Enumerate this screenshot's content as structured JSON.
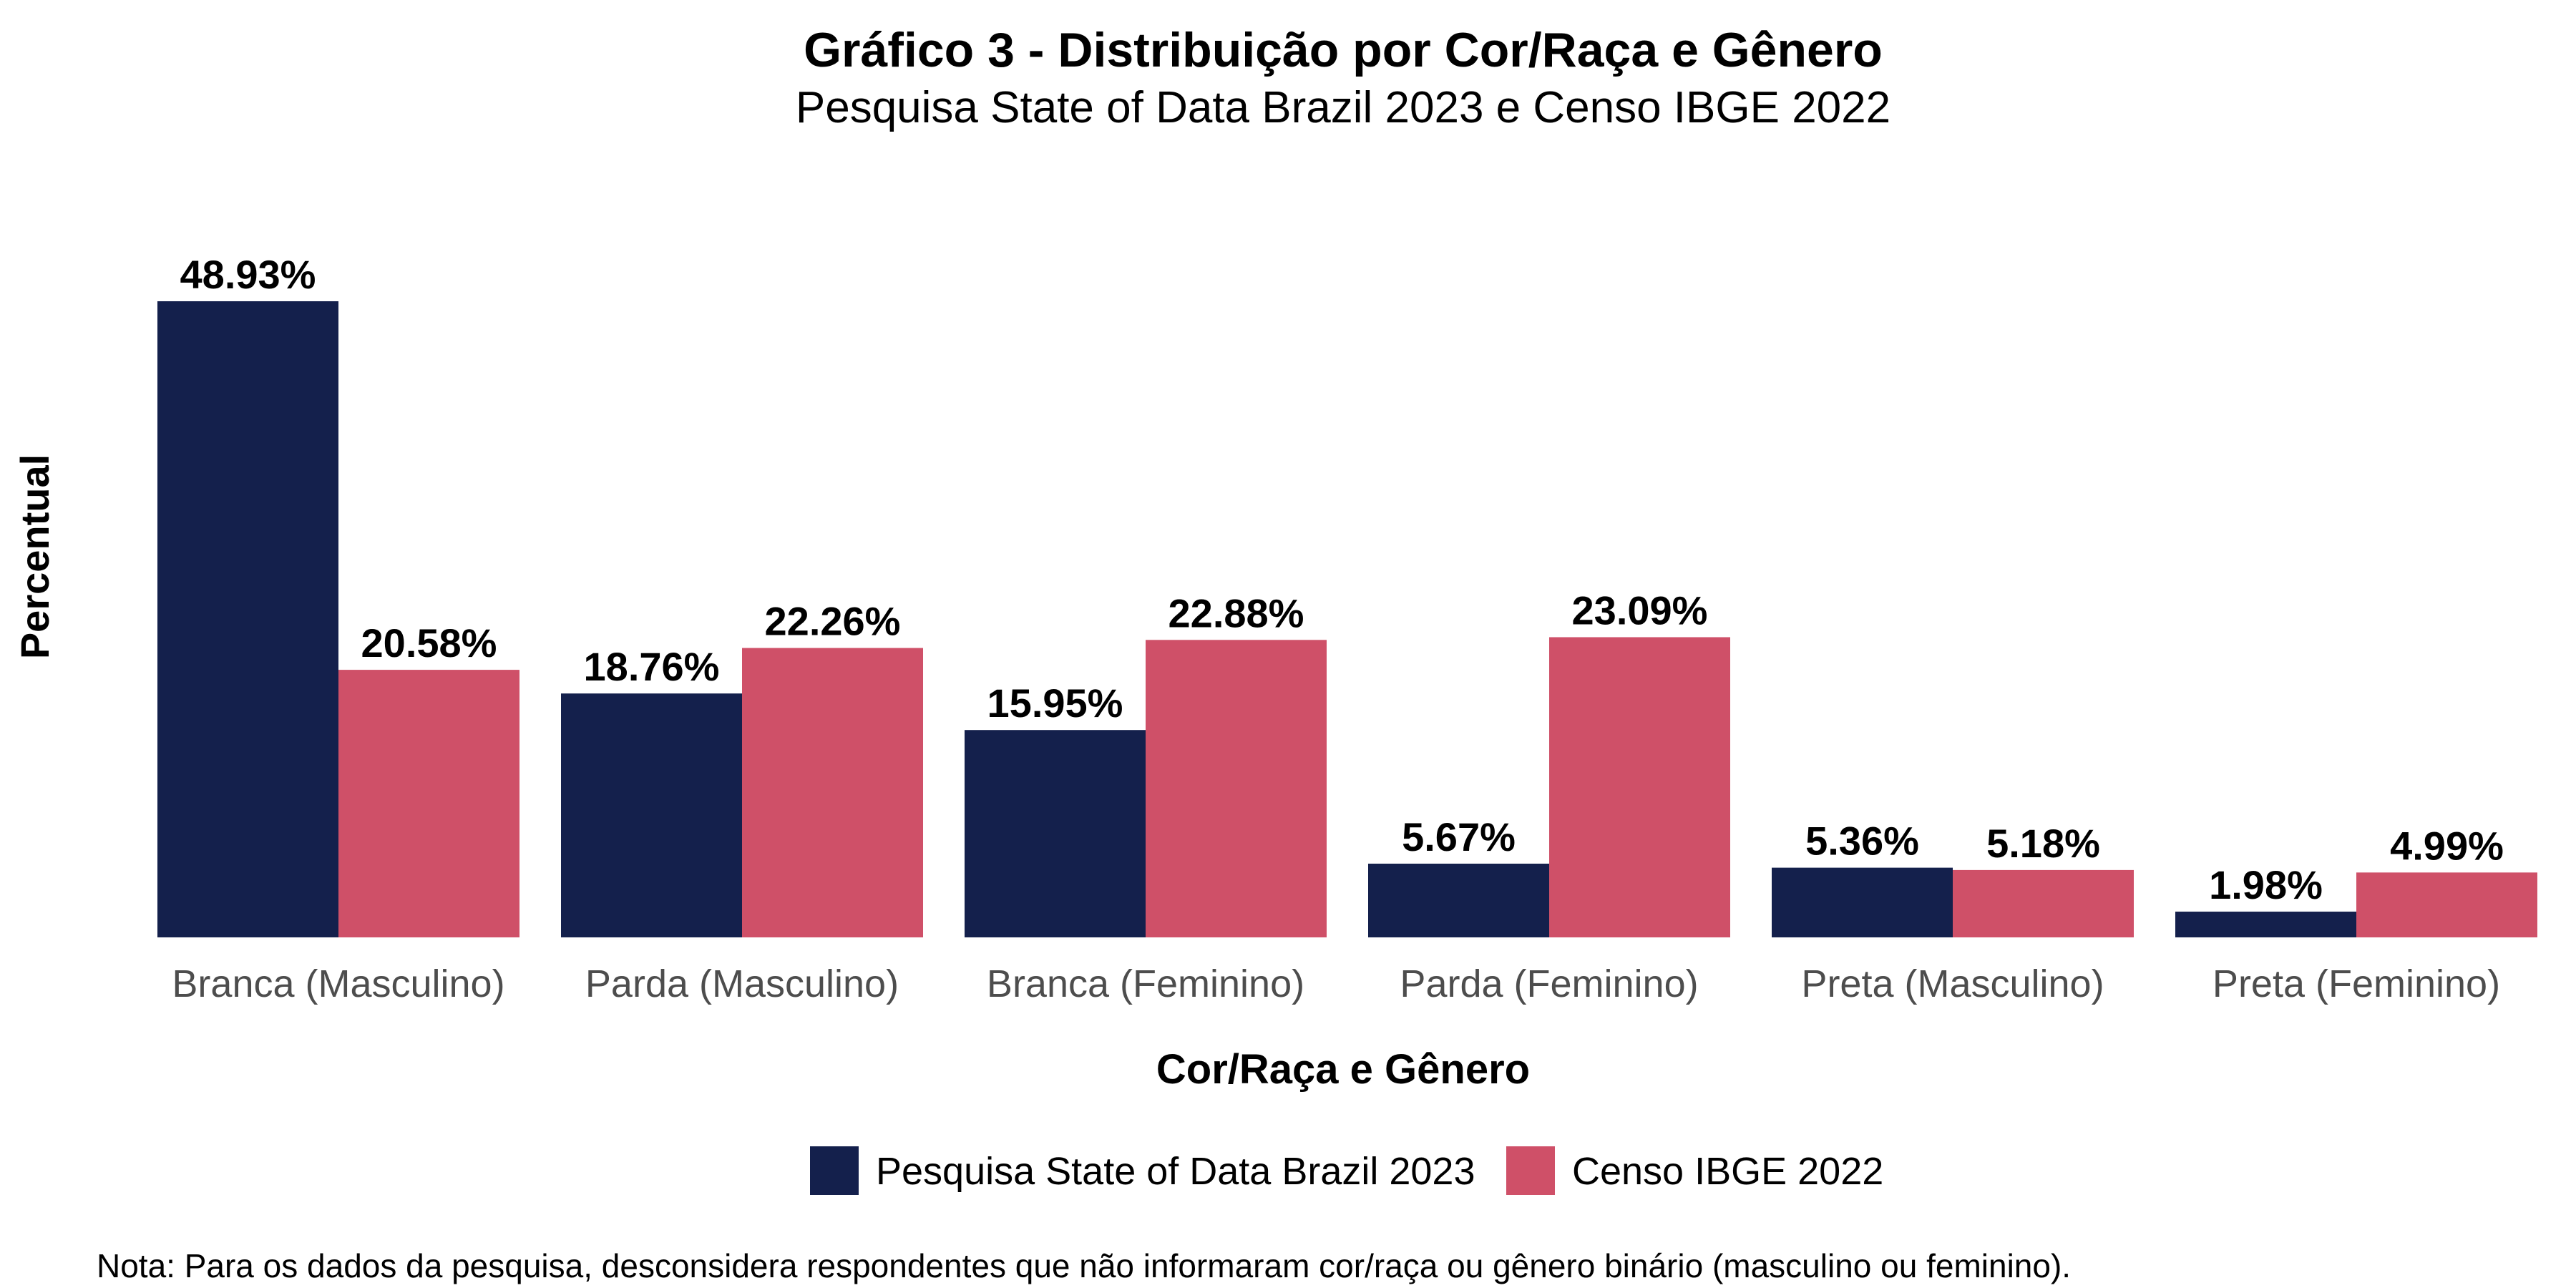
{
  "chart_data": {
    "type": "bar",
    "title": "Gráfico 3 - Distribuição por Cor/Raça e Gênero",
    "subtitle": "Pesquisa State of Data Brazil 2023 e Censo IBGE 2022",
    "xlabel": "Cor/Raça e Gênero",
    "ylabel": "Percentual",
    "categories": [
      "Branca (Masculino)",
      "Parda (Masculino)",
      "Branca (Feminino)",
      "Parda (Feminino)",
      "Preta (Masculino)",
      "Preta (Feminino)"
    ],
    "series": [
      {
        "name": "Pesquisa State of Data Brazil 2023",
        "color": "#14204c",
        "values": [
          48.93,
          18.76,
          15.95,
          5.67,
          5.36,
          1.98
        ],
        "labels": [
          "48.93%",
          "18.76%",
          "15.95%",
          "5.67%",
          "5.36%",
          "1.98%"
        ]
      },
      {
        "name": "Censo IBGE 2022",
        "color": "#cf5068",
        "values": [
          20.58,
          22.26,
          22.88,
          23.09,
          5.18,
          4.99
        ],
        "labels": [
          "20.58%",
          "22.26%",
          "22.88%",
          "23.09%",
          "5.18%",
          "4.99%"
        ]
      }
    ],
    "ylim": [
      0,
      48.93
    ],
    "grid": false,
    "y_ticks_shown": false,
    "legend_position": "bottom",
    "note": "Nota: Para os dados da pesquisa, desconsidera respondentes que não informaram cor/raça ou gênero binário (masculino ou feminino)."
  }
}
